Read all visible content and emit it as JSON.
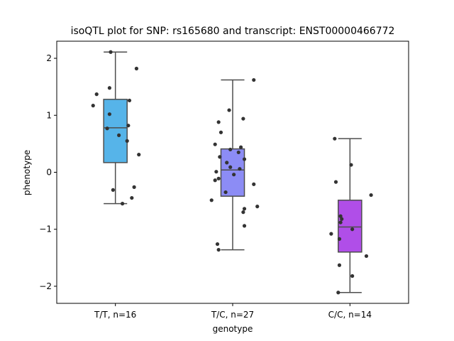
{
  "chart_data": {
    "type": "box",
    "title": "isoQTL plot for SNP: rs165680 and transcript: ENST00000466772",
    "xlabel": "genotype",
    "ylabel": "phenotype",
    "ylim": [
      -2.3,
      2.3
    ],
    "yticks": [
      -2,
      -1,
      0,
      1,
      2
    ],
    "ytick_labels": [
      "−2",
      "−1",
      "0",
      "1",
      "2"
    ],
    "grid": false,
    "categories": [
      "T/T, n=16",
      "T/C, n=27",
      "C/C, n=14"
    ],
    "boxes": [
      {
        "category": "T/T, n=16",
        "color": "#56b4e9",
        "whisker_low": -0.55,
        "q1": 0.17,
        "median": 0.78,
        "q3": 1.28,
        "whisker_high": 2.11
      },
      {
        "category": "T/C, n=27",
        "color": "#8c8cf5",
        "whisker_low": -1.36,
        "q1": -0.42,
        "median": 0.04,
        "q3": 0.41,
        "whisker_high": 1.62
      },
      {
        "category": "C/C, n=14",
        "color": "#b04ee8",
        "whisker_low": -2.11,
        "q1": -1.4,
        "median": -0.96,
        "q3": -0.49,
        "whisker_high": 0.59
      }
    ],
    "points": [
      [
        [
          -0.04,
          2.11
        ],
        [
          0.18,
          1.82
        ],
        [
          -0.16,
          1.37
        ],
        [
          -0.05,
          1.48
        ],
        [
          0.12,
          1.26
        ],
        [
          -0.19,
          1.17
        ],
        [
          -0.05,
          1.02
        ],
        [
          0.11,
          0.82
        ],
        [
          -0.07,
          0.77
        ],
        [
          0.03,
          0.65
        ],
        [
          0.1,
          0.55
        ],
        [
          0.2,
          0.31
        ],
        [
          0.16,
          -0.26
        ],
        [
          -0.02,
          -0.31
        ],
        [
          0.14,
          -0.45
        ],
        [
          0.06,
          -0.55
        ]
      ],
      [
        [
          0.18,
          1.62
        ],
        [
          -0.03,
          1.09
        ],
        [
          0.09,
          0.94
        ],
        [
          -0.12,
          0.88
        ],
        [
          -0.1,
          0.7
        ],
        [
          -0.15,
          0.49
        ],
        [
          0.07,
          0.44
        ],
        [
          -0.02,
          0.4
        ],
        [
          0.05,
          0.35
        ],
        [
          -0.11,
          0.27
        ],
        [
          0.1,
          0.23
        ],
        [
          -0.05,
          0.17
        ],
        [
          -0.02,
          0.09
        ],
        [
          0.06,
          0.06
        ],
        [
          -0.14,
          0.01
        ],
        [
          0.01,
          -0.04
        ],
        [
          -0.12,
          -0.11
        ],
        [
          -0.15,
          -0.14
        ],
        [
          0.18,
          -0.21
        ],
        [
          -0.06,
          -0.35
        ],
        [
          -0.18,
          -0.49
        ],
        [
          0.21,
          -0.6
        ],
        [
          0.1,
          -0.64
        ],
        [
          0.09,
          -0.7
        ],
        [
          0.1,
          -0.94
        ],
        [
          -0.13,
          -1.26
        ],
        [
          -0.12,
          -1.36
        ]
      ],
      [
        [
          -0.13,
          0.59
        ],
        [
          0.01,
          0.13
        ],
        [
          -0.12,
          -0.17
        ],
        [
          0.18,
          -0.4
        ],
        [
          -0.08,
          -0.77
        ],
        [
          -0.07,
          -0.82
        ],
        [
          -0.08,
          -0.88
        ],
        [
          0.02,
          -1.0
        ],
        [
          -0.16,
          -1.08
        ],
        [
          -0.09,
          -1.17
        ],
        [
          0.14,
          -1.47
        ],
        [
          -0.09,
          -1.63
        ],
        [
          0.02,
          -1.82
        ],
        [
          -0.1,
          -2.11
        ]
      ]
    ]
  }
}
